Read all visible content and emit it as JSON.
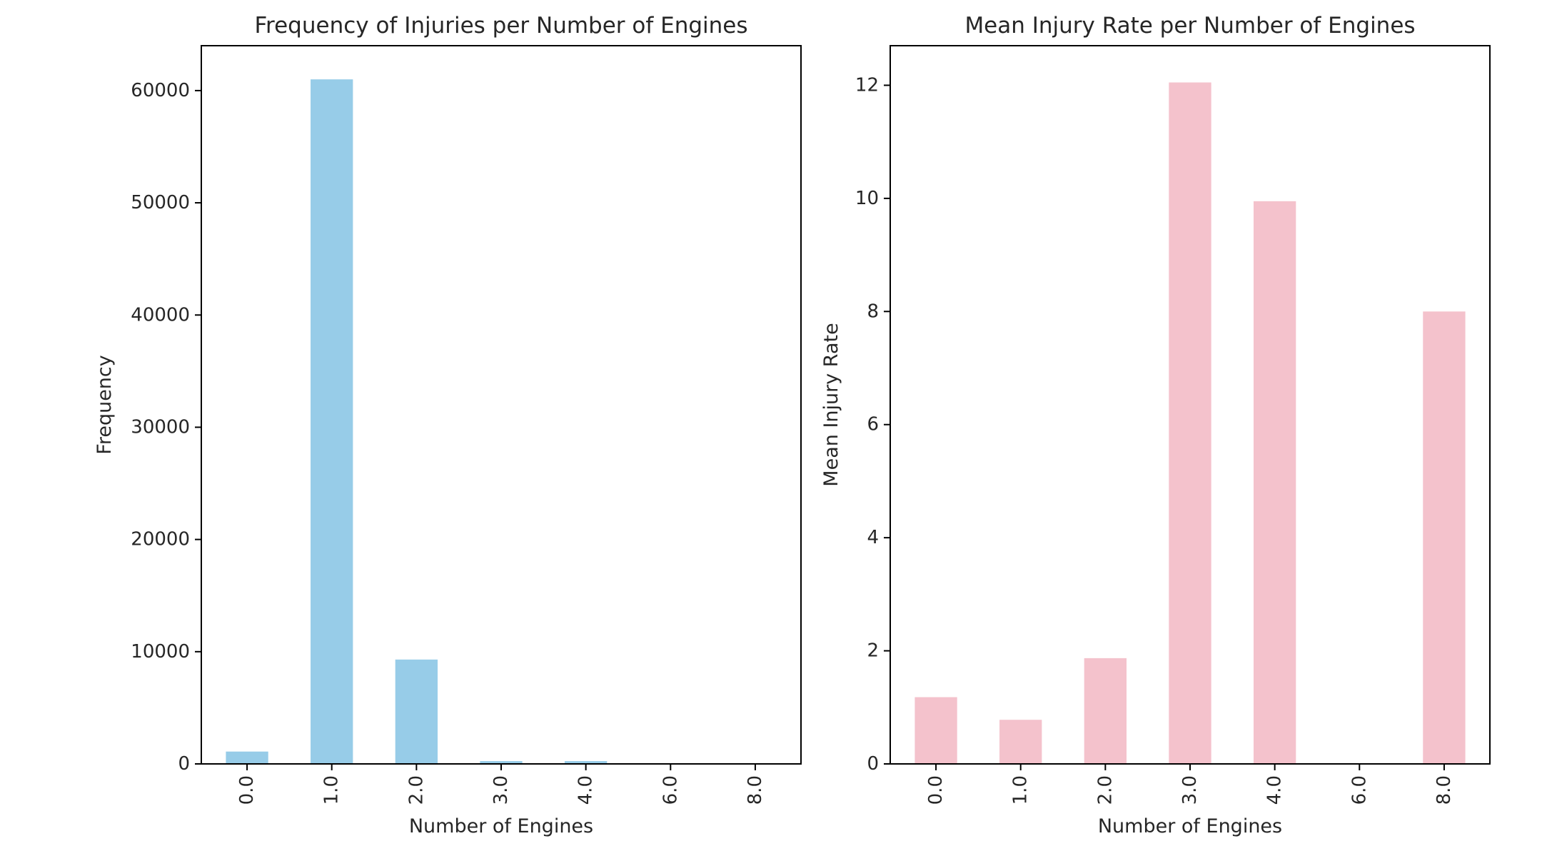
{
  "chart_data": [
    {
      "type": "bar",
      "title": "Frequency of Injuries per Number of Engines",
      "xlabel": "Number of Engines",
      "ylabel": "Frequency",
      "categories": [
        "0.0",
        "1.0",
        "2.0",
        "3.0",
        "4.0",
        "6.0",
        "8.0"
      ],
      "values": [
        1100,
        61000,
        9300,
        250,
        250,
        0,
        0
      ],
      "ylim": [
        0,
        64000
      ],
      "yticks": [
        0,
        10000,
        20000,
        30000,
        40000,
        50000,
        60000
      ],
      "ytick_labels": [
        "0",
        "10000",
        "20000",
        "30000",
        "40000",
        "50000",
        "60000"
      ],
      "color": "#97cce8",
      "grid": false,
      "legend": false
    },
    {
      "type": "bar",
      "title": "Mean Injury Rate per Number of Engines",
      "xlabel": "Number of Engines",
      "ylabel": "Mean Injury Rate",
      "categories": [
        "0.0",
        "1.0",
        "2.0",
        "3.0",
        "4.0",
        "6.0",
        "8.0"
      ],
      "values": [
        1.18,
        0.78,
        1.87,
        12.05,
        9.95,
        0,
        8.0
      ],
      "ylim": [
        0,
        12.7
      ],
      "yticks": [
        0,
        2,
        4,
        6,
        8,
        10,
        12
      ],
      "ytick_labels": [
        "0",
        "2",
        "4",
        "6",
        "8",
        "10",
        "12"
      ],
      "color": "#f4c2cc",
      "grid": false,
      "legend": false
    }
  ]
}
